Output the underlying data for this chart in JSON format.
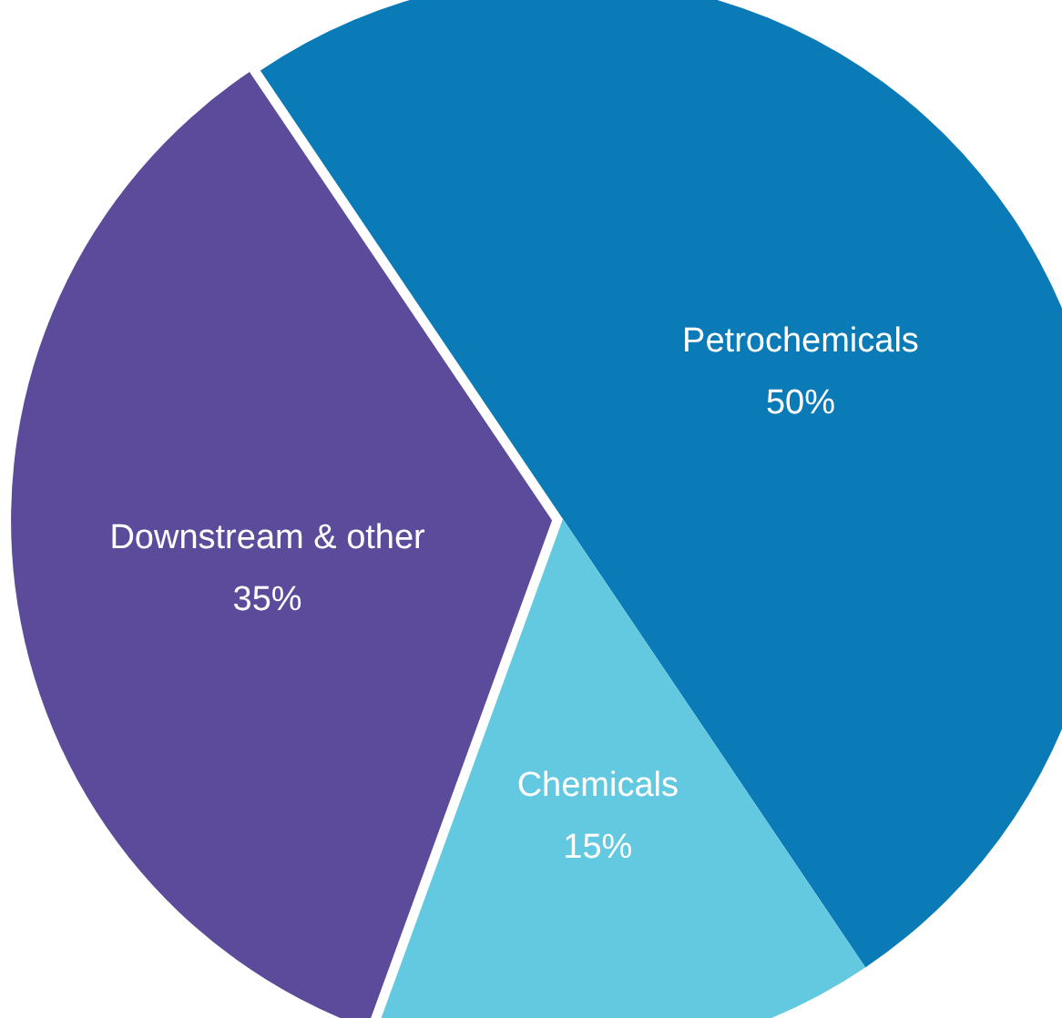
{
  "chart_data": {
    "type": "pie",
    "categories": [
      "Petrochemicals",
      "Chemicals",
      "Downstream & other"
    ],
    "values": [
      50,
      15,
      35
    ],
    "colors": [
      "#0b7bb8",
      "#63c9e1",
      "#5c4a9b"
    ],
    "value_labels": [
      "50%",
      "15%",
      "35%"
    ]
  }
}
